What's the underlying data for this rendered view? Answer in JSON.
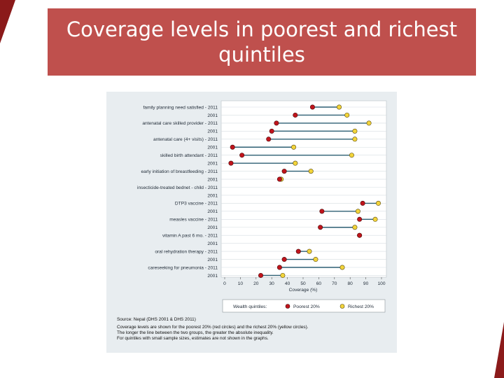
{
  "title": "Coverage levels in poorest and richest quintiles",
  "chart_data": {
    "type": "scatter",
    "style": "dumbbell",
    "xlabel": "Coverage (%)",
    "xlim": [
      0,
      100
    ],
    "xticks": [
      0,
      10,
      20,
      30,
      40,
      50,
      60,
      70,
      80,
      90,
      100
    ],
    "grid": true,
    "legend_position": "bottom",
    "legend": {
      "title": "Wealth quintiles:",
      "items": [
        "Poorest 20%",
        "Richest 20%"
      ]
    },
    "colors": {
      "poorest": "#c0141c",
      "richest": "#f2d43a",
      "line": "#2d5f73",
      "panel": "#e8edf0"
    },
    "rows": [
      {
        "label": "family planning need satisfied - 2011",
        "poorest": 56,
        "richest": 73
      },
      {
        "label": "2001",
        "poorest": 45,
        "richest": 78
      },
      {
        "label": "antenatal care skilled provider - 2011",
        "poorest": 33,
        "richest": 92
      },
      {
        "label": "2001",
        "poorest": 30,
        "richest": 83
      },
      {
        "label": "antenatal care (4+ visits) - 2011",
        "poorest": 28,
        "richest": 83
      },
      {
        "label": "2001",
        "poorest": 5,
        "richest": 44
      },
      {
        "label": "skilled birth attendant - 2011",
        "poorest": 11,
        "richest": 81
      },
      {
        "label": "2001",
        "poorest": 4,
        "richest": 45
      },
      {
        "label": "early initiation of breastfeeding - 2011",
        "poorest": 38,
        "richest": 55
      },
      {
        "label": "2001",
        "poorest": 35,
        "richest": 36
      },
      {
        "label": "insecticide-treated bednet - child - 2011",
        "poorest": null,
        "richest": null
      },
      {
        "label": "2001",
        "poorest": null,
        "richest": null
      },
      {
        "label": "DTP3 vaccine - 2011",
        "poorest": 88,
        "richest": 98
      },
      {
        "label": "2001",
        "poorest": 62,
        "richest": 85
      },
      {
        "label": "measles vaccine - 2011",
        "poorest": 86,
        "richest": 96
      },
      {
        "label": "2001",
        "poorest": 61,
        "richest": 83
      },
      {
        "label": "vitamin A past 6 mo. - 2011",
        "poorest": 86,
        "richest": 86
      },
      {
        "label": "2001",
        "poorest": null,
        "richest": null
      },
      {
        "label": "oral rehydration therapy - 2011",
        "poorest": 47,
        "richest": 54
      },
      {
        "label": "2001",
        "poorest": 38,
        "richest": 58
      },
      {
        "label": "careseeking for pneumonia - 2011",
        "poorest": 35,
        "richest": 75
      },
      {
        "label": "2001",
        "poorest": 23,
        "richest": 37
      }
    ],
    "notes": [
      "Source: Nepal (DHS 2001 & DHS 2011)",
      "Coverage levels are shown for the poorest 20% (red circles) and the richest 20% (yellow circles).",
      "The longer the line between the two groups, the greater the absolute inequality.",
      "For quintiles with small sample sizes, estimates are not shown in the graphs."
    ]
  }
}
